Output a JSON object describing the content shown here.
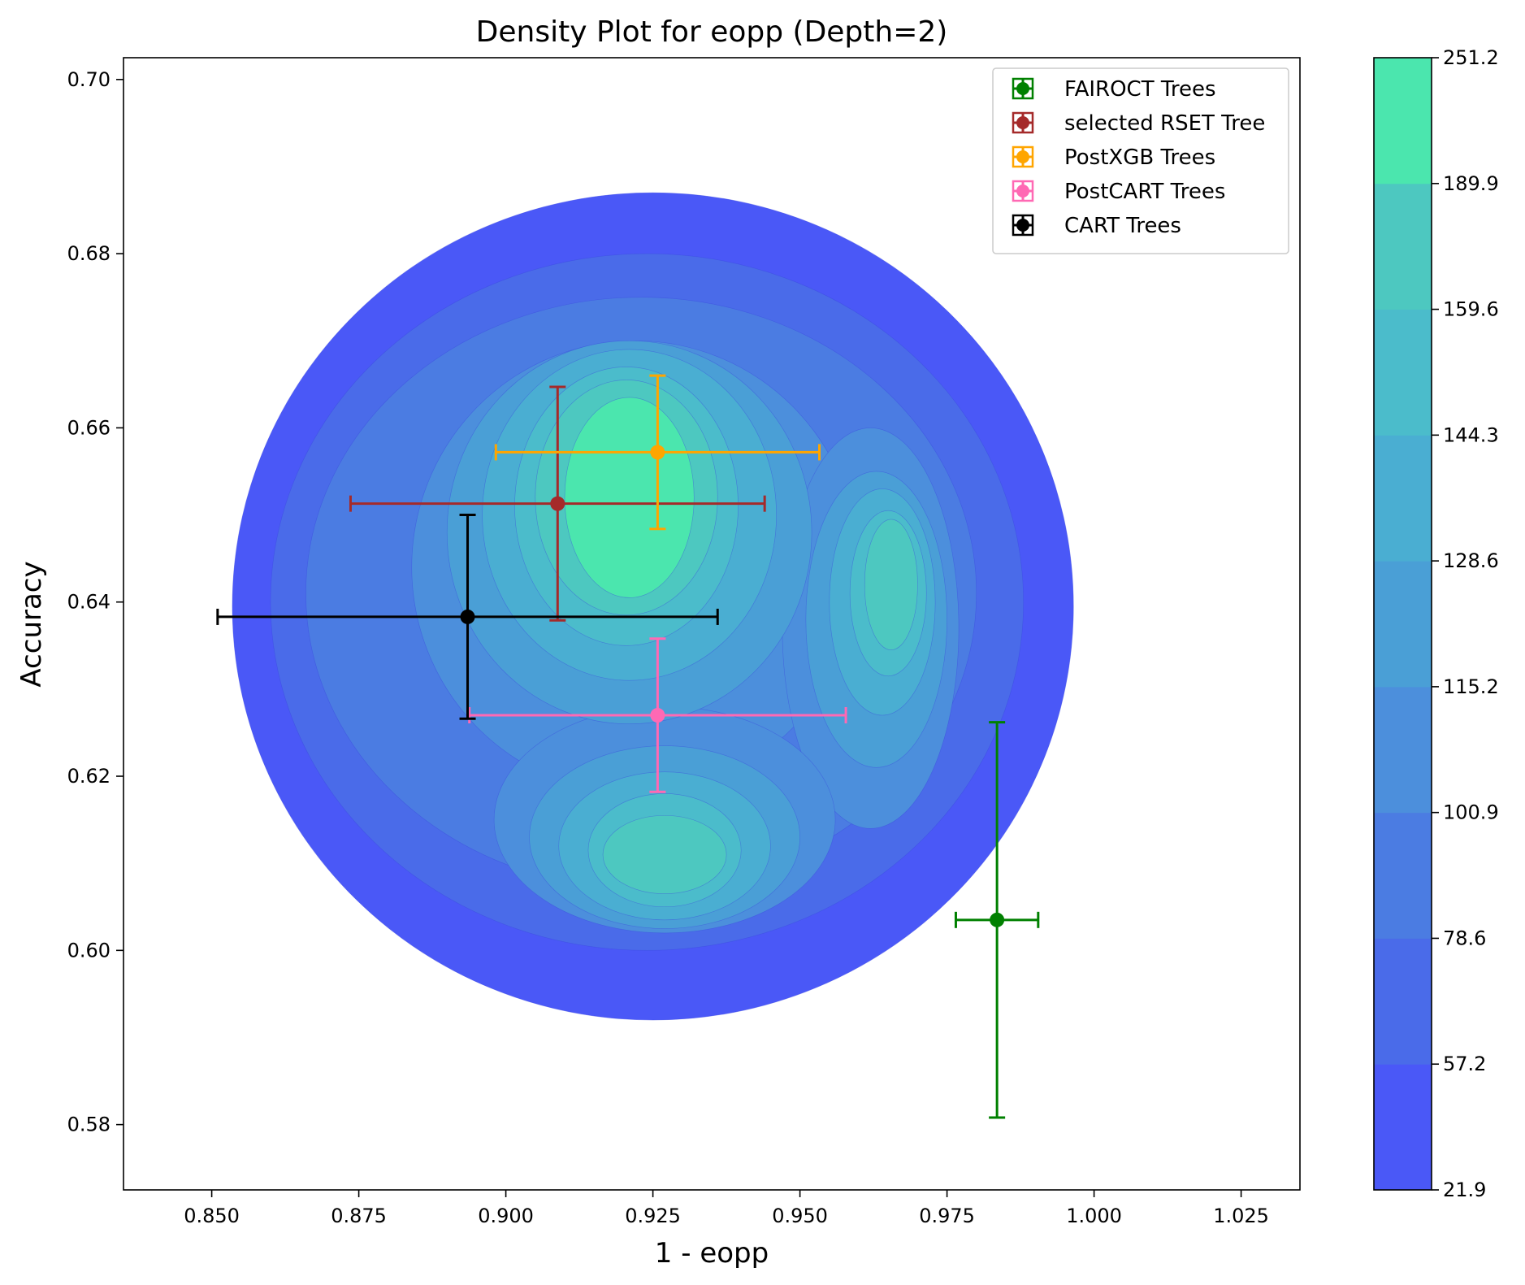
{
  "chart_data": {
    "type": "scatter",
    "title": "Density Plot for eopp (Depth=2)",
    "xlabel": "1 - eopp",
    "ylabel": "Accuracy",
    "xlim": [
      0.835,
      1.035
    ],
    "ylim": [
      0.5725,
      0.7025
    ],
    "xticks": [
      "0.850",
      "0.875",
      "0.900",
      "0.925",
      "0.950",
      "0.975",
      "1.000",
      "1.025"
    ],
    "yticks": [
      "0.58",
      "0.60",
      "0.62",
      "0.64",
      "0.66",
      "0.68",
      "0.70"
    ],
    "legend_position": "top-right",
    "density": {
      "colorbar_ticks": [
        "21.9",
        "57.2",
        "78.6",
        "100.9",
        "115.2",
        "128.6",
        "144.3",
        "159.6",
        "189.9",
        "251.2"
      ],
      "level_colors": [
        "#4a58f7",
        "#4a6be9",
        "#4b7ce2",
        "#4c8fdc",
        "#4a9fd6",
        "#4aaed2",
        "#4bbccb",
        "#4dc8c0",
        "#4be6ae"
      ],
      "regions": [
        {
          "level": 0,
          "cx": 0.925,
          "cy": 0.6395,
          "rx": 0.0715,
          "ry": 0.0475
        },
        {
          "level": 1,
          "cx": 0.924,
          "cy": 0.64,
          "rx": 0.064,
          "ry": 0.04
        },
        {
          "level": 2,
          "cx": 0.923,
          "cy": 0.641,
          "rx": 0.057,
          "ry": 0.034
        },
        {
          "level": 3,
          "cx": 0.922,
          "cy": 0.644,
          "rx": 0.038,
          "ry": 0.026
        },
        {
          "level": 3,
          "cx": 0.962,
          "cy": 0.637,
          "rx": 0.015,
          "ry": 0.023
        },
        {
          "level": 3,
          "cx": 0.927,
          "cy": 0.615,
          "rx": 0.029,
          "ry": 0.013
        },
        {
          "level": 4,
          "cx": 0.921,
          "cy": 0.648,
          "rx": 0.031,
          "ry": 0.022
        },
        {
          "level": 4,
          "cx": 0.963,
          "cy": 0.638,
          "rx": 0.012,
          "ry": 0.017
        },
        {
          "level": 4,
          "cx": 0.927,
          "cy": 0.613,
          "rx": 0.023,
          "ry": 0.0105
        },
        {
          "level": 5,
          "cx": 0.921,
          "cy": 0.65,
          "rx": 0.025,
          "ry": 0.019
        },
        {
          "level": 5,
          "cx": 0.964,
          "cy": 0.64,
          "rx": 0.009,
          "ry": 0.013
        },
        {
          "level": 5,
          "cx": 0.927,
          "cy": 0.612,
          "rx": 0.018,
          "ry": 0.0085
        },
        {
          "level": 6,
          "cx": 0.9205,
          "cy": 0.651,
          "rx": 0.019,
          "ry": 0.016
        },
        {
          "level": 6,
          "cx": 0.965,
          "cy": 0.641,
          "rx": 0.0065,
          "ry": 0.0095
        },
        {
          "level": 6,
          "cx": 0.927,
          "cy": 0.6115,
          "rx": 0.013,
          "ry": 0.0065
        },
        {
          "level": 7,
          "cx": 0.9205,
          "cy": 0.652,
          "rx": 0.0155,
          "ry": 0.0135
        },
        {
          "level": 7,
          "cx": 0.9655,
          "cy": 0.642,
          "rx": 0.0045,
          "ry": 0.0075
        },
        {
          "level": 7,
          "cx": 0.927,
          "cy": 0.611,
          "rx": 0.0105,
          "ry": 0.0045
        },
        {
          "level": 8,
          "cx": 0.921,
          "cy": 0.652,
          "rx": 0.011,
          "ry": 0.0115
        }
      ]
    },
    "series": [
      {
        "name": "FAIROCT Trees",
        "color": "#008000",
        "x": 0.9835,
        "y": 0.6035,
        "xerr": 0.007,
        "yerr": 0.0227
      },
      {
        "name": "selected RSET Tree",
        "color": "#a52a2a",
        "x": 0.9088,
        "y": 0.6513,
        "xerr": 0.0352,
        "yerr": 0.0134
      },
      {
        "name": "PostXGB Trees",
        "color": "#ffa500",
        "x": 0.9258,
        "y": 0.6572,
        "xerr": 0.0275,
        "yerr": 0.0088
      },
      {
        "name": "PostCART Trees",
        "color": "#ff69b4",
        "x": 0.9258,
        "y": 0.627,
        "xerr": 0.032,
        "yerr": 0.0088
      },
      {
        "name": "CART Trees",
        "color": "#000000",
        "x": 0.8935,
        "y": 0.6383,
        "xerr": 0.0425,
        "yerr": 0.0117
      }
    ]
  }
}
